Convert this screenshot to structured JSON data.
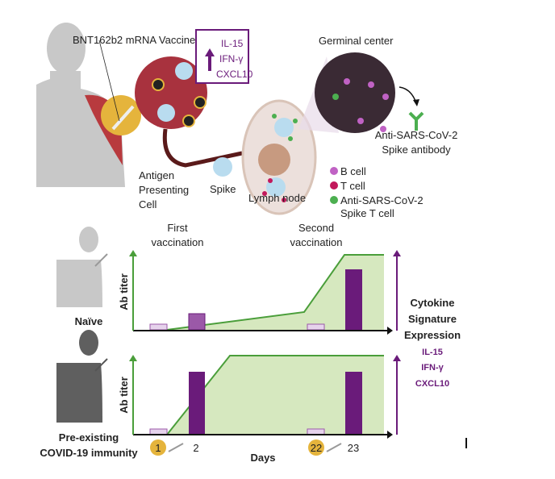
{
  "top": {
    "vaccine_label": "BNT162b2 mRNA Vaccine",
    "cytokine_box": [
      "IL-15",
      "IFN-γ",
      "CXCL10"
    ],
    "germinal_center_label": "Germinal center",
    "antibody_label": [
      "Anti-SARS-CoV-2",
      "Spike antibody"
    ],
    "apc_label": [
      "Antigen",
      "Presenting",
      "Cell"
    ],
    "spike_label": "Spike",
    "lymph_node_label": "Lymph node",
    "legend": [
      {
        "label": "B cell",
        "color": "#c062c4"
      },
      {
        "label": "T cell",
        "color": "#c2185b"
      },
      {
        "label": "Anti-SARS-CoV-2",
        "label2": "Spike T cell",
        "color": "#4caf50"
      }
    ]
  },
  "bottom": {
    "first_vaccination": [
      "First",
      "vaccination"
    ],
    "second_vaccination": [
      "Second",
      "vaccination"
    ],
    "y_label": "Ab titer",
    "naive_label": "Naïve",
    "preexisting_label": [
      "Pre-existing",
      "COVID-19 immunity"
    ],
    "cytokine_title": [
      "Cytokine",
      "Signature",
      "Expression"
    ],
    "cytokines": [
      "IL-15",
      "IFN-γ",
      "CXCL10"
    ],
    "days_label": "Days",
    "day_ticks": [
      "1",
      "2",
      "22",
      "23"
    ]
  },
  "colors": {
    "green": "#4a9e3a",
    "green_fill": "#d6e8bf",
    "purple": "#6a1b7a",
    "light_purple": "#e6d3ec",
    "mid_purple": "#9b59a8",
    "gold": "#e5b43c"
  }
}
